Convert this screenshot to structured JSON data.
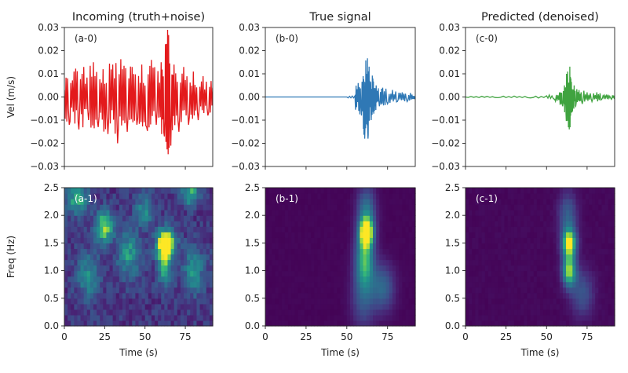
{
  "chart_data": [
    {
      "type": "line",
      "panel_label": "(a-0)",
      "title": "Incoming (truth+noise)",
      "ylabel": "Vel (m/s)",
      "xlim": [
        0,
        92
      ],
      "ylim": [
        -0.03,
        0.03
      ],
      "xticks": [
        "0",
        "25",
        "50",
        "75"
      ],
      "yticks": [
        "−0.03",
        "−0.02",
        "−0.01",
        "0.00",
        "0.01",
        "0.02",
        "0.03"
      ],
      "color": "#e31a1c",
      "series": [
        {
          "x": [
            0,
            3,
            6,
            9,
            12,
            15,
            18,
            21,
            24,
            27,
            30,
            33,
            36,
            39,
            42,
            45,
            48,
            51,
            54,
            57,
            60,
            62,
            64,
            66,
            68,
            71,
            74,
            77,
            80,
            83,
            86,
            89,
            92
          ],
          "values": [
            0.003,
            -0.012,
            0.011,
            -0.014,
            0.013,
            -0.01,
            0.015,
            -0.013,
            0.012,
            -0.016,
            0.014,
            -0.02,
            0.012,
            -0.015,
            0.013,
            -0.012,
            0.014,
            -0.013,
            0.016,
            -0.012,
            0.015,
            -0.017,
            0.029,
            -0.021,
            0.014,
            -0.015,
            0.013,
            -0.012,
            0.011,
            -0.01,
            0.009,
            -0.008,
            0.004
          ]
        }
      ]
    },
    {
      "type": "line",
      "panel_label": "(b-0)",
      "title": "True signal",
      "xlim": [
        0,
        92
      ],
      "ylim": [
        -0.03,
        0.03
      ],
      "xticks": [
        "0",
        "25",
        "50",
        "75"
      ],
      "yticks": [
        "−0.03",
        "−0.02",
        "−0.01",
        "0.00",
        "0.01",
        "0.02",
        "0.03"
      ],
      "color": "#2f78b5",
      "series": [
        {
          "x": [
            0,
            10,
            20,
            30,
            40,
            50,
            55,
            57,
            59,
            60,
            61,
            62,
            63,
            64,
            65,
            66,
            67,
            68,
            70,
            72,
            75,
            78,
            81,
            84,
            87,
            90,
            92
          ],
          "values": [
            0,
            0,
            0,
            0,
            0,
            0,
            0.0005,
            0.006,
            -0.008,
            0.009,
            -0.018,
            0.01,
            -0.018,
            0.007,
            -0.01,
            0.008,
            -0.006,
            0.005,
            -0.004,
            0.004,
            -0.003,
            0.003,
            -0.002,
            0.002,
            -0.002,
            0.001,
            0
          ]
        }
      ]
    },
    {
      "type": "line",
      "panel_label": "(c-0)",
      "title": "Predicted (denoised)",
      "xlim": [
        0,
        92
      ],
      "ylim": [
        -0.03,
        0.03
      ],
      "xticks": [
        "0",
        "25",
        "50",
        "75"
      ],
      "yticks": [
        "−0.03",
        "−0.02",
        "−0.01",
        "0.00",
        "0.01",
        "0.02",
        "0.03"
      ],
      "color": "#3fa33f",
      "series": [
        {
          "x": [
            0,
            10,
            20,
            30,
            40,
            50,
            55,
            58,
            60,
            61,
            62,
            63,
            64,
            65,
            66,
            67,
            68,
            70,
            72,
            75,
            78,
            81,
            84,
            87,
            90,
            92
          ],
          "values": [
            0,
            0.0003,
            -0.0003,
            0.0004,
            -0.0004,
            0.0005,
            -0.001,
            0.002,
            -0.004,
            0.005,
            -0.007,
            0.011,
            -0.014,
            0.008,
            -0.006,
            0.005,
            -0.004,
            0.003,
            -0.003,
            0.002,
            -0.002,
            0.002,
            -0.001,
            0.001,
            -0.001,
            0
          ]
        }
      ]
    },
    {
      "type": "heatmap",
      "panel_label": "(a-1)",
      "xlabel": "Time (s)",
      "ylabel": "Freq (Hz)",
      "xlim": [
        0,
        92
      ],
      "ylim": [
        0,
        2.5
      ],
      "xticks": [
        "0",
        "25",
        "50",
        "75"
      ],
      "yticks": [
        "0.0",
        "0.5",
        "1.0",
        "1.5",
        "2.0",
        "2.5"
      ],
      "colormap": "viridis",
      "blobs": [
        {
          "t": 63,
          "f": 1.5,
          "rt": 4,
          "rf": 0.18,
          "v": 1.0
        },
        {
          "t": 62,
          "f": 1.15,
          "rt": 3,
          "rf": 0.25,
          "v": 0.6
        },
        {
          "t": 25,
          "f": 1.8,
          "rt": 4,
          "rf": 0.2,
          "v": 0.7
        },
        {
          "t": 8,
          "f": 2.3,
          "rt": 5,
          "rf": 0.2,
          "v": 0.5
        },
        {
          "t": 78,
          "f": 2.4,
          "rt": 4,
          "rf": 0.15,
          "v": 0.55
        },
        {
          "t": 40,
          "f": 1.3,
          "rt": 5,
          "rf": 0.3,
          "v": 0.45
        },
        {
          "t": 15,
          "f": 0.9,
          "rt": 5,
          "rf": 0.3,
          "v": 0.4
        },
        {
          "t": 80,
          "f": 1.0,
          "rt": 5,
          "rf": 0.3,
          "v": 0.4
        },
        {
          "t": 50,
          "f": 2.1,
          "rt": 4,
          "rf": 0.2,
          "v": 0.4
        }
      ],
      "background_level": 0.22
    },
    {
      "type": "heatmap",
      "panel_label": "(b-1)",
      "xlabel": "Time (s)",
      "xlim": [
        0,
        92
      ],
      "ylim": [
        0,
        2.5
      ],
      "xticks": [
        "0",
        "25",
        "50",
        "75"
      ],
      "yticks": [
        "0.0",
        "0.5",
        "1.0",
        "1.5",
        "2.0",
        "2.5"
      ],
      "colormap": "viridis",
      "blobs": [
        {
          "t": 62,
          "f": 1.7,
          "rt": 3,
          "rf": 0.18,
          "v": 1.0
        },
        {
          "t": 61,
          "f": 1.2,
          "rt": 4,
          "rf": 0.35,
          "v": 0.7
        },
        {
          "t": 62,
          "f": 2.1,
          "rt": 4,
          "rf": 0.3,
          "v": 0.45
        },
        {
          "t": 72,
          "f": 0.7,
          "rt": 5,
          "rf": 0.3,
          "v": 0.4
        },
        {
          "t": 60,
          "f": 0.5,
          "rt": 5,
          "rf": 0.4,
          "v": 0.3
        }
      ],
      "background_level": 0.02
    },
    {
      "type": "heatmap",
      "panel_label": "(c-1)",
      "xlabel": "Time (s)",
      "xlim": [
        0,
        92
      ],
      "ylim": [
        0,
        2.5
      ],
      "xticks": [
        "0",
        "25",
        "50",
        "75"
      ],
      "yticks": [
        "0.0",
        "0.5",
        "1.0",
        "1.5",
        "2.0",
        "2.5"
      ],
      "colormap": "viridis",
      "blobs": [
        {
          "t": 64,
          "f": 1.5,
          "rt": 3,
          "rf": 0.18,
          "v": 1.0
        },
        {
          "t": 64,
          "f": 1.0,
          "rt": 3,
          "rf": 0.2,
          "v": 0.85
        },
        {
          "t": 63,
          "f": 2.0,
          "rt": 4,
          "rf": 0.3,
          "v": 0.35
        },
        {
          "t": 72,
          "f": 0.6,
          "rt": 5,
          "rf": 0.3,
          "v": 0.3
        }
      ],
      "background_level": 0.03
    }
  ]
}
